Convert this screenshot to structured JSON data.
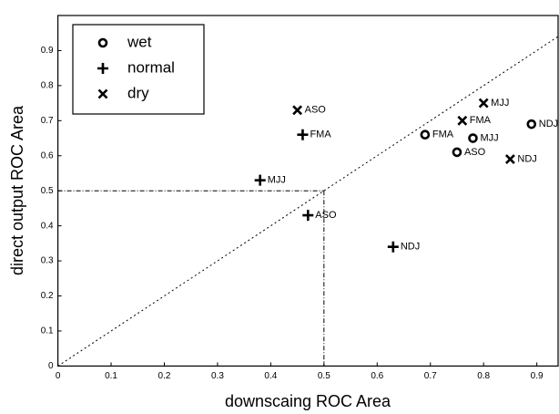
{
  "chart_data": {
    "type": "scatter",
    "x_label": "downscaing ROC Area",
    "y_label": "direct output ROC Area",
    "xlim": [
      0,
      0.94
    ],
    "ylim": [
      0,
      1
    ],
    "xticks": [
      0,
      0.1,
      0.2,
      0.3,
      0.4,
      0.5,
      0.6,
      0.7,
      0.8,
      0.9
    ],
    "yticks": [
      0,
      0.1,
      0.2,
      0.3,
      0.4,
      0.5,
      0.6,
      0.7,
      0.8,
      0.9
    ],
    "diagonal": true,
    "crosshair": 0.5,
    "legend": "upper left",
    "series": [
      {
        "name": "wet",
        "marker": "circle",
        "color": "#000000",
        "x": [
          0.69,
          0.78,
          0.75,
          0.89
        ],
        "values": [
          0.66,
          0.65,
          0.61,
          0.69
        ],
        "labels": [
          "FMA",
          "MJJ",
          "ASO",
          "NDJ"
        ]
      },
      {
        "name": "normal",
        "marker": "plus",
        "color": "#000000",
        "x": [
          0.47,
          0.38,
          0.46,
          0.63
        ],
        "values": [
          0.43,
          0.53,
          0.66,
          0.34
        ],
        "labels": [
          "ASO",
          "MJJ",
          "FMA",
          "NDJ"
        ]
      },
      {
        "name": "dry",
        "marker": "cross",
        "color": "#000000",
        "x": [
          0.45,
          0.76,
          0.8,
          0.85
        ],
        "values": [
          0.73,
          0.7,
          0.75,
          0.59
        ],
        "labels": [
          "ASO",
          "FMA",
          "MJJ",
          "NDJ"
        ]
      }
    ]
  }
}
